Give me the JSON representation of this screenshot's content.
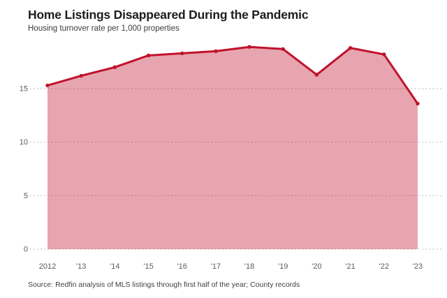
{
  "chart": {
    "title": "Home Listings Disappeared During the Pandemic",
    "subtitle": "Housing turnover rate per 1,000 properties",
    "source": "Source: Redfin analysis of MLS listings through first half of the year; County records"
  },
  "chart_data": {
    "type": "area",
    "title": "Home Listings Disappeared During the Pandemic",
    "subtitle": "Housing turnover rate per 1,000 properties",
    "categories": [
      "2012",
      "'13",
      "'14",
      "'15",
      "'16",
      "'17",
      "'18",
      "'19",
      "'20",
      "'21",
      "'22",
      "'23"
    ],
    "values": [
      15.3,
      16.2,
      17.0,
      18.1,
      18.3,
      18.5,
      18.9,
      18.7,
      16.3,
      18.8,
      18.2,
      13.6
    ],
    "xlabel": "",
    "ylabel": "Housing turnover rate per 1,000 properties",
    "ylim": [
      0,
      20
    ],
    "yticks": [
      0,
      5,
      10,
      15
    ],
    "grid": "horizontal-dotted",
    "legend": "none",
    "markers": true,
    "colors": {
      "line": "#c0122c",
      "fill_opacity": 0.38,
      "grid": "#c3c3c3",
      "axis_text": "#5a5a5a",
      "title_text": "#1d1d1d",
      "subtitle_text": "#3c3c3c",
      "source_text": "#404040",
      "background": "#ffffff"
    },
    "source": "Source: Redfin analysis of MLS listings through first half of the year; County records"
  }
}
